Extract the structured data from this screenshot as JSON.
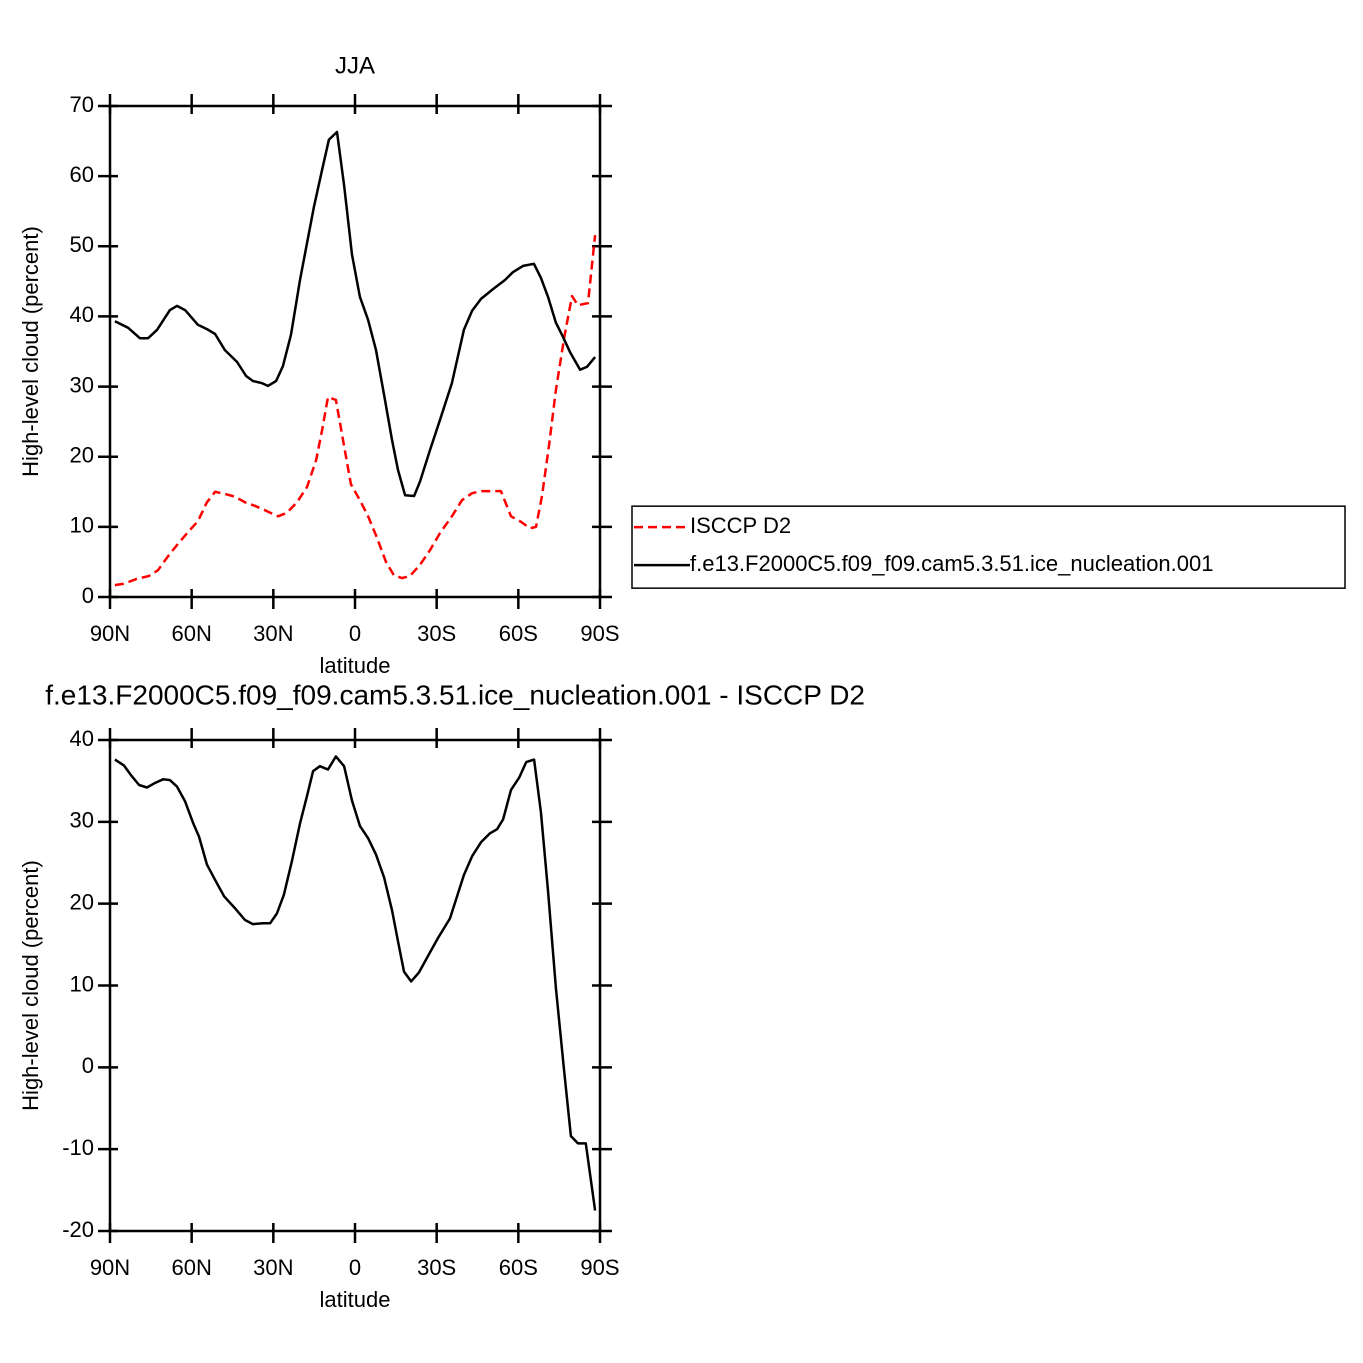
{
  "chart_data": [
    {
      "type": "line",
      "title": "JJA",
      "xlabel": "latitude",
      "ylabel": "High-level cloud (percent)",
      "xlim": [
        90,
        -90
      ],
      "xticks": [
        {
          "value": 90,
          "label": "90N"
        },
        {
          "value": 60,
          "label": "60N"
        },
        {
          "value": 30,
          "label": "30N"
        },
        0,
        {
          "value": -30,
          "label": "30S"
        },
        {
          "value": -60,
          "label": "60S"
        },
        {
          "value": -90,
          "label": "90S"
        }
      ],
      "ylim": [
        0,
        70
      ],
      "yticks": [
        0,
        10,
        20,
        30,
        40,
        50,
        60,
        70
      ],
      "legend": "right",
      "series": [
        {
          "name": "ISCCP D2",
          "color": "#ff0000",
          "line_style": "dashed",
          "x": [
            88.2,
            84.9,
            80.1,
            75.7,
            72.4,
            68.7,
            65,
            61,
            57.7,
            54.4,
            51.4,
            47.8,
            44.1,
            40.4,
            36.8,
            32.7,
            28.3,
            25,
            21.3,
            17.6,
            14.3,
            12.1,
            9.9,
            7,
            4.4,
            1.5,
            -1.8,
            -4.8,
            -7.7,
            -11.4,
            -14.3,
            -17.3,
            -20.2,
            -23.9,
            -27.6,
            -31.2,
            -35.6,
            -39.3,
            -43,
            -46.3,
            -50,
            -53.6,
            -57.3,
            -61,
            -64.3,
            -66.5,
            -68.7,
            -71.3,
            -73.8,
            -76.8,
            -79.7,
            -81.9,
            -85.6,
            -88.2
          ],
          "values": [
            1.7,
            1.9,
            2.6,
            3.0,
            3.8,
            5.8,
            7.6,
            9.4,
            10.8,
            13.5,
            15.0,
            14.7,
            14.3,
            13.5,
            13.0,
            12.3,
            11.5,
            12.0,
            13.5,
            15.7,
            19.5,
            23.8,
            28.5,
            28.1,
            22.4,
            16.1,
            13.8,
            11.5,
            8.8,
            5.0,
            3.1,
            2.7,
            3.0,
            4.6,
            6.7,
            9.1,
            11.5,
            13.8,
            14.8,
            15.1,
            15.1,
            15.1,
            11.5,
            10.7,
            9.8,
            10.0,
            14.4,
            21.7,
            29.5,
            36.9,
            42.9,
            41.6,
            41.9,
            51.6
          ]
        },
        {
          "name": "f.e13.F2000C5.f09_f09.cam5.3.51.ice_nucleation.001",
          "color": "#000000",
          "line_style": "solid",
          "x": [
            88.2,
            83.4,
            79,
            76,
            72.7,
            68,
            65.4,
            62.4,
            57.7,
            54.4,
            51.4,
            47.8,
            43.3,
            40,
            37.5,
            34.2,
            32,
            29,
            26.5,
            23.5,
            20.2,
            15.1,
            12.1,
            9.6,
            6.6,
            4,
            1.1,
            -1.8,
            -4.8,
            -7.7,
            -10.7,
            -13.6,
            -15.8,
            -18.4,
            -21.7,
            -23.9,
            -27.6,
            -31.2,
            -35.6,
            -40,
            -43,
            -46.3,
            -50.7,
            -55.1,
            -58,
            -61.7,
            -65.7,
            -68.3,
            -70.9,
            -73.8,
            -76,
            -79,
            -82.7,
            -85.2,
            -88.2
          ],
          "values": [
            39.3,
            38.4,
            36.9,
            36.9,
            38.1,
            40.9,
            41.5,
            40.9,
            38.8,
            38.2,
            37.5,
            35.2,
            33.5,
            31.5,
            30.8,
            30.5,
            30.1,
            30.8,
            32.9,
            37.4,
            45.2,
            55.6,
            60.9,
            65.2,
            66.3,
            58.7,
            48.8,
            42.8,
            39.5,
            35.2,
            28.8,
            22.4,
            18.1,
            14.5,
            14.4,
            16.5,
            21.0,
            25.2,
            30.5,
            38.1,
            40.8,
            42.5,
            43.9,
            45.2,
            46.3,
            47.2,
            47.5,
            45.5,
            42.8,
            39.1,
            37.4,
            34.9,
            32.4,
            32.8,
            34.2
          ]
        }
      ]
    },
    {
      "type": "line",
      "title": "f.e13.F2000C5.f09_f09.cam5.3.51.ice_nucleation.001 - ISCCP D2",
      "xlabel": "latitude",
      "ylabel": "High-level cloud (percent)",
      "xlim": [
        90,
        -90
      ],
      "xticks": [
        {
          "value": 90,
          "label": "90N"
        },
        {
          "value": 60,
          "label": "60N"
        },
        {
          "value": 30,
          "label": "30N"
        },
        0,
        {
          "value": -30,
          "label": "30S"
        },
        {
          "value": -60,
          "label": "60S"
        },
        {
          "value": -90,
          "label": "90S"
        }
      ],
      "ylim": [
        -20,
        40
      ],
      "yticks": [
        -20,
        -10,
        0,
        10,
        20,
        30,
        40
      ],
      "series": [
        {
          "color": "#000000",
          "line_style": "solid",
          "x": [
            88.2,
            84.9,
            82.3,
            79.3,
            76.4,
            73.8,
            70.5,
            68,
            65.4,
            62.4,
            59.5,
            57.3,
            54.4,
            51.4,
            48.1,
            43.7,
            40.4,
            37.5,
            33.8,
            31.2,
            28.7,
            26.1,
            23.1,
            20.2,
            17.6,
            15.4,
            12.9,
            9.9,
            7,
            4,
            1.1,
            -1.8,
            -4.8,
            -7.7,
            -10.7,
            -13.6,
            -15.8,
            -18,
            -20.6,
            -23.5,
            -26.8,
            -30.5,
            -34.9,
            -40,
            -43,
            -46.3,
            -49.6,
            -52.2,
            -54.4,
            -57.3,
            -60.3,
            -62.9,
            -65.8,
            -68.3,
            -70.9,
            -73.8,
            -76.8,
            -79.3,
            -81.9,
            -84.8,
            -88.2
          ],
          "values": [
            37.6,
            36.9,
            35.7,
            34.5,
            34.2,
            34.7,
            35.2,
            35.1,
            34.3,
            32.5,
            29.9,
            28.2,
            24.8,
            22.9,
            20.9,
            19.3,
            18.0,
            17.5,
            17.6,
            17.6,
            18.8,
            21.1,
            25.3,
            29.8,
            33.2,
            36.2,
            36.8,
            36.4,
            38.0,
            36.8,
            32.6,
            29.5,
            28.0,
            26.0,
            23.2,
            19.2,
            15.4,
            11.7,
            10.5,
            11.6,
            13.6,
            15.8,
            18.2,
            23.5,
            25.8,
            27.5,
            28.6,
            29.1,
            30.3,
            33.9,
            35.4,
            37.3,
            37.6,
            31.2,
            21.6,
            9.7,
            -0.4,
            -8.4,
            -9.3,
            -9.3,
            -17.5
          ]
        }
      ]
    }
  ]
}
